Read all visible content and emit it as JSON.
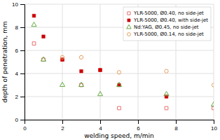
{
  "chart_data": {
    "type": "scatter",
    "xlabel": "welding speed, m/min",
    "ylabel": "depth of penetration, mm",
    "xlim": [
      0,
      10
    ],
    "ylim": [
      0,
      10
    ],
    "xticks": [
      0,
      2,
      4,
      6,
      8,
      10
    ],
    "yticks": [
      0,
      2,
      4,
      6,
      8,
      10
    ],
    "grid": true,
    "legend": "upper right",
    "series": [
      {
        "name": "YLR-5000, Ø0.40, no side-jet",
        "color": "#e87070",
        "marker": "square-open",
        "x": [
          0.5,
          1.0,
          2.0,
          3.0,
          4.0,
          5.0,
          7.5,
          10.0
        ],
        "values": [
          6.6,
          5.2,
          5.2,
          3.0,
          4.3,
          1.0,
          1.0,
          1.0
        ]
      },
      {
        "name": "YLR-5000, Ø0.40, with side-jet",
        "color": "#cc0000",
        "marker": "square",
        "x": [
          0.5,
          1.0,
          2.0,
          3.0,
          4.0,
          5.0,
          7.5
        ],
        "values": [
          9.0,
          7.2,
          5.2,
          4.2,
          4.3,
          3.0,
          2.0
        ]
      },
      {
        "name": "Nd:YAG, Ø0.45, no side-jet",
        "color": "#66aa44",
        "marker": "triangle-open",
        "x": [
          0.5,
          1.0,
          2.0,
          3.0,
          4.0,
          5.0,
          7.5,
          10.0
        ],
        "values": [
          8.2,
          5.2,
          3.0,
          3.0,
          2.2,
          3.0,
          2.2,
          1.3
        ]
      },
      {
        "name": "YLR-5000, Ø0.14, no side-jet",
        "color": "#e8a060",
        "marker": "circle-open",
        "x": [
          2.0,
          3.0,
          5.0,
          7.5,
          10.0
        ],
        "values": [
          5.4,
          5.4,
          4.1,
          4.2,
          3.0
        ]
      }
    ]
  }
}
